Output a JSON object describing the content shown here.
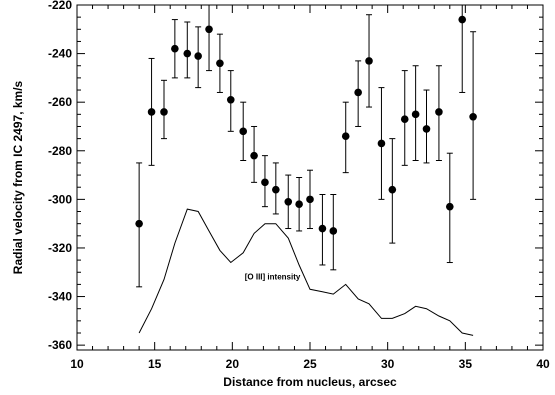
{
  "chart_data": {
    "type": "scatter",
    "xlabel": "Distance from nucleus, arcsec",
    "ylabel": "Radial velocity from IC 2497, km/s",
    "xlim": [
      10,
      40
    ],
    "ylim": [
      -362,
      -220
    ],
    "x_ticks": [
      10,
      15,
      20,
      25,
      30,
      35,
      40
    ],
    "y_ticks": [
      -360,
      -340,
      -320,
      -300,
      -280,
      -260,
      -240,
      -220
    ],
    "grid": false,
    "series": [
      {
        "marker": "filled-circle",
        "points": [
          {
            "x": 14.0,
            "y": -310,
            "yerr_low": -336,
            "yerr_high": -285
          },
          {
            "x": 14.8,
            "y": -264,
            "yerr_low": -286,
            "yerr_high": -242
          },
          {
            "x": 15.6,
            "y": -264,
            "yerr_low": -275,
            "yerr_high": -251
          },
          {
            "x": 16.3,
            "y": -238,
            "yerr_low": -250,
            "yerr_high": -226
          },
          {
            "x": 17.1,
            "y": -240,
            "yerr_low": -250,
            "yerr_high": -227
          },
          {
            "x": 17.8,
            "y": -241,
            "yerr_low": -254,
            "yerr_high": -229
          },
          {
            "x": 18.5,
            "y": -230,
            "yerr_low": -247,
            "yerr_high": -216
          },
          {
            "x": 19.2,
            "y": -244,
            "yerr_low": -256,
            "yerr_high": -232
          },
          {
            "x": 19.9,
            "y": -259,
            "yerr_low": -272,
            "yerr_high": -247
          },
          {
            "x": 20.7,
            "y": -272,
            "yerr_low": -284,
            "yerr_high": -260
          },
          {
            "x": 21.4,
            "y": -282,
            "yerr_low": -293,
            "yerr_high": -270
          },
          {
            "x": 22.1,
            "y": -293,
            "yerr_low": -303,
            "yerr_high": -282
          },
          {
            "x": 22.8,
            "y": -296,
            "yerr_low": -306,
            "yerr_high": -285
          },
          {
            "x": 23.6,
            "y": -301,
            "yerr_low": -312,
            "yerr_high": -290
          },
          {
            "x": 24.3,
            "y": -302,
            "yerr_low": -313,
            "yerr_high": -291
          },
          {
            "x": 25.0,
            "y": -300,
            "yerr_low": -312,
            "yerr_high": -288
          },
          {
            "x": 25.8,
            "y": -312,
            "yerr_low": -327,
            "yerr_high": -298
          },
          {
            "x": 26.5,
            "y": -313,
            "yerr_low": -329,
            "yerr_high": -298
          },
          {
            "x": 27.3,
            "y": -274,
            "yerr_low": -289,
            "yerr_high": -260
          },
          {
            "x": 28.1,
            "y": -256,
            "yerr_low": -270,
            "yerr_high": -243
          },
          {
            "x": 28.8,
            "y": -243,
            "yerr_low": -262,
            "yerr_high": -224
          },
          {
            "x": 29.6,
            "y": -277,
            "yerr_low": -300,
            "yerr_high": -254
          },
          {
            "x": 30.3,
            "y": -296,
            "yerr_low": -318,
            "yerr_high": -275
          },
          {
            "x": 31.1,
            "y": -267,
            "yerr_low": -286,
            "yerr_high": -247
          },
          {
            "x": 31.8,
            "y": -265,
            "yerr_low": -284,
            "yerr_high": -245
          },
          {
            "x": 32.5,
            "y": -271,
            "yerr_low": -285,
            "yerr_high": -255
          },
          {
            "x": 33.3,
            "y": -264,
            "yerr_low": -284,
            "yerr_high": -245
          },
          {
            "x": 34.0,
            "y": -303,
            "yerr_low": -326,
            "yerr_high": -281
          },
          {
            "x": 34.8,
            "y": -226,
            "yerr_low": -256,
            "yerr_high": -215
          },
          {
            "x": 35.5,
            "y": -266,
            "yerr_low": -300,
            "yerr_high": -231
          }
        ]
      },
      {
        "name": "[O III] intensity",
        "style": "line",
        "x": [
          14.0,
          14.8,
          15.6,
          16.3,
          17.1,
          17.8,
          18.5,
          19.2,
          19.9,
          20.7,
          21.4,
          22.1,
          22.8,
          23.6,
          24.3,
          25.0,
          25.8,
          26.5,
          27.3,
          28.1,
          28.8,
          29.6,
          30.3,
          31.1,
          31.8,
          32.5,
          33.3,
          34.0,
          34.8,
          35.5
        ],
        "y": [
          -355,
          -345,
          -333,
          -318,
          -304,
          -305,
          -313,
          -321,
          -326,
          -322,
          -314,
          -310,
          -310,
          -316,
          -327,
          -337,
          -338,
          -339,
          -335,
          -341,
          -343,
          -349,
          -349,
          -347,
          -344,
          -345,
          -348,
          -350,
          -355,
          -356
        ]
      }
    ],
    "annotations": [
      {
        "text": "[O III] intensity",
        "x": 20.8,
        "y": -333
      }
    ]
  }
}
